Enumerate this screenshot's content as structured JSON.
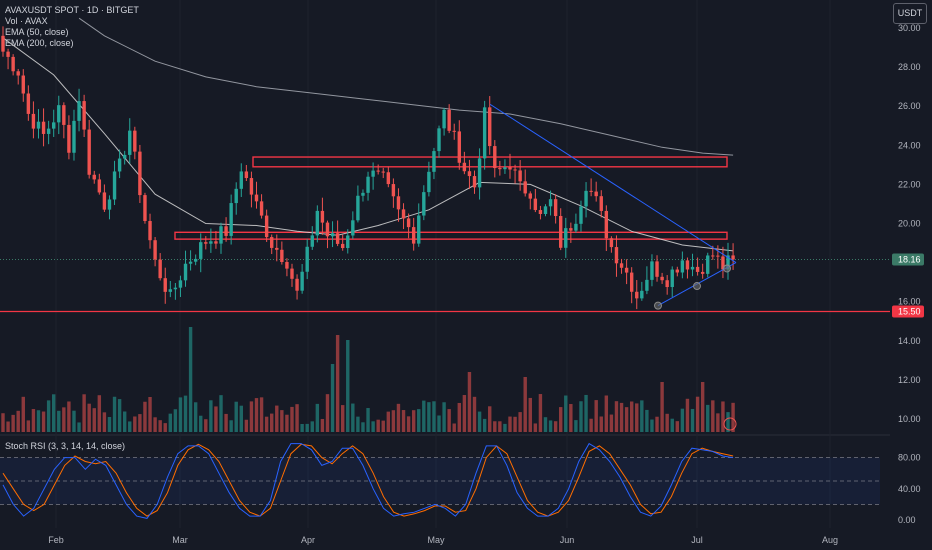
{
  "legend": {
    "symbol": "AVAXUSDT SPOT · 1D · BITGET",
    "vol": "Vol · AVAX",
    "ema50": "EMA (50, close)",
    "ema200": "EMA (200, close)"
  },
  "stoch_label": "Stoch RSI (3, 3, 14, 14, close)",
  "currency_button": "USDT",
  "colors": {
    "background": "#161a25",
    "up": "#26a69a",
    "down": "#ef5350",
    "ema50": "#d9d9d9",
    "ema200": "#b2b5be",
    "levels": "#f23645",
    "trendline": "#2962ff",
    "stoch_k": "#2962ff",
    "stoch_d": "#ff6d00",
    "price_label": "#3b7a67",
    "support_label": "#f23645"
  },
  "chart_data": {
    "type": "candlestick",
    "price_axis": {
      "ticks": [
        "30.00",
        "28.00",
        "26.00",
        "24.00",
        "22.00",
        "20.00",
        "18.00",
        "16.00",
        "14.00",
        "12.00",
        "10.00"
      ],
      "range": [
        9.5,
        30.8
      ]
    },
    "time_axis": {
      "ticks": [
        "Feb",
        "Mar",
        "Apr",
        "May",
        "Jun",
        "Jul",
        "Aug"
      ]
    },
    "current_price": "18.16",
    "support_price": "15.50",
    "stoch_axis": {
      "ticks": [
        "80.00",
        "40.00",
        "0.00"
      ],
      "bands": [
        20,
        50,
        80
      ]
    },
    "anchors": [
      {
        "d": 0,
        "p": 28.8
      },
      {
        "d": 3,
        "p": 27.8
      },
      {
        "d": 5,
        "p": 25.6
      },
      {
        "d": 8,
        "p": 24.5
      },
      {
        "d": 11,
        "p": 25.8
      },
      {
        "d": 13,
        "p": 24.0
      },
      {
        "d": 15,
        "p": 26.5
      },
      {
        "d": 17,
        "p": 22.8
      },
      {
        "d": 20,
        "p": 21.0
      },
      {
        "d": 23,
        "p": 22.9
      },
      {
        "d": 25,
        "p": 24.8
      },
      {
        "d": 28,
        "p": 20.2
      },
      {
        "d": 30,
        "p": 18.0
      },
      {
        "d": 33,
        "p": 16.2
      },
      {
        "d": 36,
        "p": 17.9
      },
      {
        "d": 40,
        "p": 19.1
      },
      {
        "d": 44,
        "p": 19.6
      },
      {
        "d": 47,
        "p": 22.9
      },
      {
        "d": 50,
        "p": 20.9
      },
      {
        "d": 53,
        "p": 19.0
      },
      {
        "d": 56,
        "p": 18.1
      },
      {
        "d": 58,
        "p": 16.4
      },
      {
        "d": 60,
        "p": 18.4
      },
      {
        "d": 62,
        "p": 20.7
      },
      {
        "d": 64,
        "p": 19.4
      },
      {
        "d": 67,
        "p": 18.8
      },
      {
        "d": 70,
        "p": 21.2
      },
      {
        "d": 72,
        "p": 22.6
      },
      {
        "d": 75,
        "p": 22.2
      },
      {
        "d": 78,
        "p": 20.5
      },
      {
        "d": 81,
        "p": 19.4
      },
      {
        "d": 84,
        "p": 22.9
      },
      {
        "d": 87,
        "p": 25.6
      },
      {
        "d": 89,
        "p": 24.3
      },
      {
        "d": 91,
        "p": 22.8
      },
      {
        "d": 93,
        "p": 21.9
      },
      {
        "d": 95,
        "p": 25.5
      },
      {
        "d": 97,
        "p": 22.5
      },
      {
        "d": 100,
        "p": 23.1
      },
      {
        "d": 102,
        "p": 21.8
      },
      {
        "d": 104,
        "p": 21.7
      },
      {
        "d": 106,
        "p": 20.3
      },
      {
        "d": 108,
        "p": 21.1
      },
      {
        "d": 110,
        "p": 19.0
      },
      {
        "d": 113,
        "p": 20.4
      },
      {
        "d": 115,
        "p": 22.1
      },
      {
        "d": 117,
        "p": 21.1
      },
      {
        "d": 120,
        "p": 18.8
      },
      {
        "d": 123,
        "p": 17.5
      },
      {
        "d": 125,
        "p": 16.3
      },
      {
        "d": 128,
        "p": 17.8
      },
      {
        "d": 131,
        "p": 17.2
      },
      {
        "d": 134,
        "p": 18.2
      },
      {
        "d": 137,
        "p": 17.6
      },
      {
        "d": 140,
        "p": 18.4
      },
      {
        "d": 142,
        "p": 17.8
      },
      {
        "d": 144,
        "p": 18.16
      }
    ],
    "ema50": [
      [
        0,
        29.5
      ],
      [
        10,
        27.6
      ],
      [
        20,
        24.6
      ],
      [
        30,
        21.5
      ],
      [
        40,
        20.0
      ],
      [
        50,
        19.9
      ],
      [
        58,
        19.6
      ],
      [
        66,
        19.4
      ],
      [
        74,
        19.9
      ],
      [
        84,
        20.7
      ],
      [
        94,
        22.1
      ],
      [
        104,
        22.0
      ],
      [
        114,
        20.9
      ],
      [
        124,
        19.6
      ],
      [
        134,
        18.9
      ],
      [
        144,
        18.6
      ]
    ],
    "ema200": [
      [
        15,
        30.5
      ],
      [
        20,
        29.6
      ],
      [
        30,
        28.3
      ],
      [
        40,
        27.5
      ],
      [
        50,
        27.0
      ],
      [
        60,
        26.7
      ],
      [
        70,
        26.4
      ],
      [
        80,
        26.1
      ],
      [
        90,
        25.8
      ],
      [
        100,
        25.6
      ],
      [
        110,
        25.1
      ],
      [
        120,
        24.5
      ],
      [
        130,
        23.9
      ],
      [
        138,
        23.6
      ],
      [
        144,
        23.5
      ]
    ],
    "zones": [
      {
        "top": 23.4,
        "bottom": 22.9
      },
      {
        "top": 19.55,
        "bottom": 19.2
      }
    ],
    "stoch_k": [
      45,
      20,
      5,
      15,
      40,
      65,
      80,
      80,
      65,
      78,
      70,
      45,
      20,
      5,
      2,
      20,
      55,
      85,
      95,
      95,
      85,
      60,
      35,
      15,
      5,
      5,
      25,
      75,
      98,
      98,
      90,
      70,
      75,
      92,
      92,
      70,
      40,
      15,
      5,
      8,
      10,
      15,
      20,
      15,
      5,
      20,
      60,
      95,
      95,
      70,
      35,
      15,
      5,
      5,
      15,
      40,
      75,
      98,
      90,
      75,
      55,
      30,
      10,
      5,
      18,
      45,
      75,
      92,
      90,
      88,
      82,
      80
    ],
    "stoch_d": [
      60,
      40,
      20,
      12,
      20,
      45,
      70,
      82,
      75,
      72,
      75,
      60,
      35,
      15,
      5,
      12,
      35,
      70,
      90,
      97,
      90,
      75,
      50,
      25,
      10,
      5,
      15,
      50,
      85,
      97,
      95,
      80,
      72,
      85,
      95,
      85,
      60,
      30,
      10,
      5,
      8,
      12,
      18,
      18,
      10,
      12,
      40,
      80,
      95,
      85,
      55,
      25,
      10,
      5,
      10,
      25,
      55,
      88,
      95,
      85,
      65,
      45,
      20,
      8,
      10,
      30,
      60,
      85,
      92,
      88,
      85,
      82
    ]
  }
}
